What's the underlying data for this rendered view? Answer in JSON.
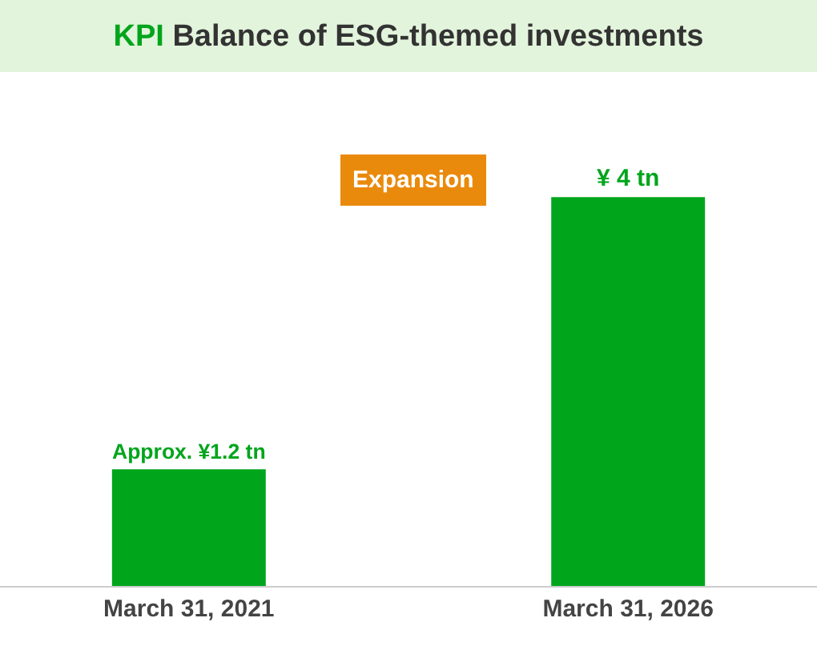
{
  "chart_data": {
    "type": "bar",
    "title": "KPI Balance of ESG-themed investments",
    "categories": [
      "March 31, 2021",
      "March 31, 2026"
    ],
    "values": [
      1.2,
      4
    ],
    "color": "#00a51c",
    "value_labels": [
      "Approx. ¥1.2 tn",
      "¥ 4 tn"
    ],
    "annotations": [
      "Expansion"
    ],
    "tick_labels": "x",
    "legend": false
  }
}
